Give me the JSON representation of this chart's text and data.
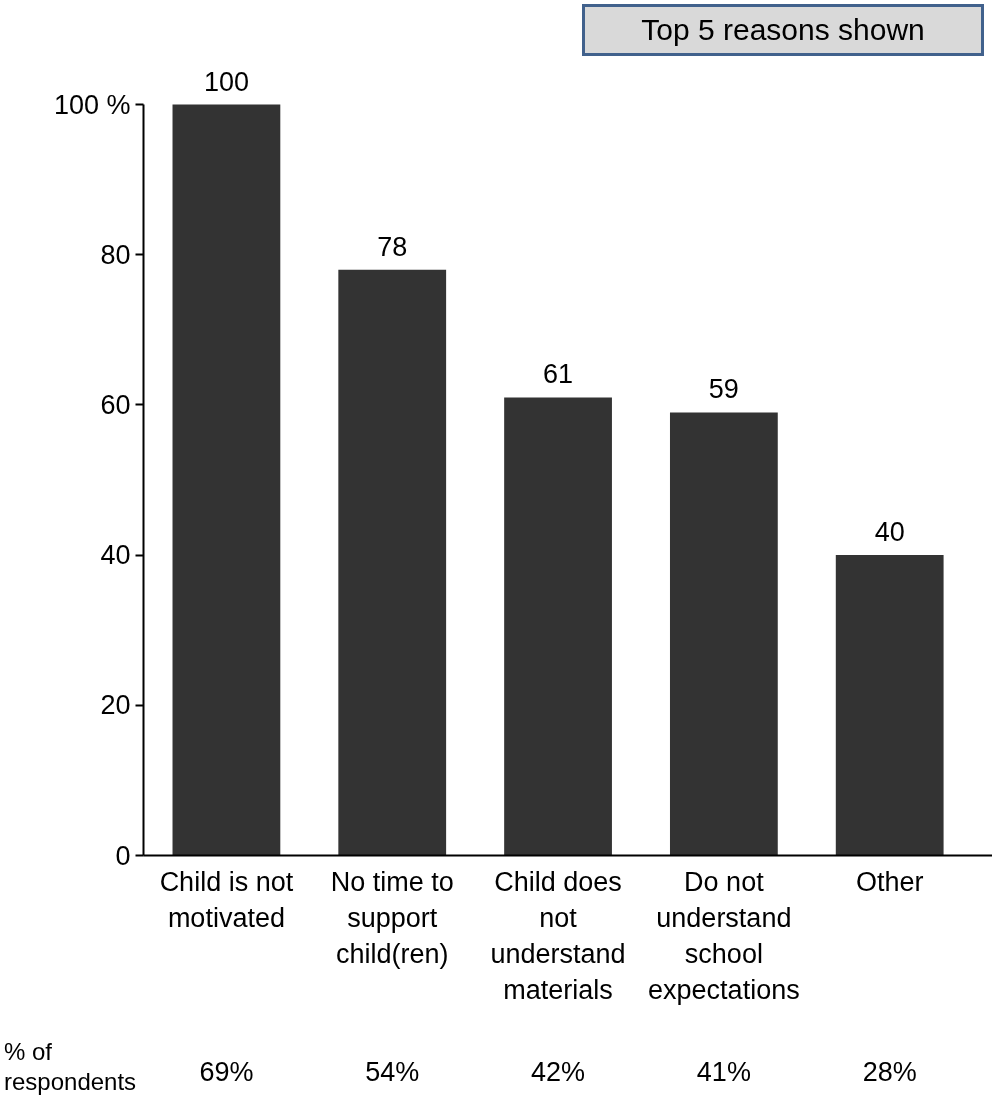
{
  "chart_data": {
    "type": "bar",
    "categories": [
      "Child is not\nmotivated",
      "No time to\nsupport\nchild(ren)",
      "Child does\nnot\nunderstand\nmaterials",
      "Do not\nunderstand\nschool\nexpectations",
      "Other"
    ],
    "values": [
      100,
      78,
      61,
      59,
      40
    ],
    "color": "#333333",
    "data_labels": true,
    "ylim": [
      0,
      100
    ],
    "yticks": [
      0,
      20,
      40,
      60,
      80,
      {
        "value": 100,
        "label": "100 %"
      }
    ],
    "grid": false,
    "annotations": [
      "Top 5 reasons shown",
      "% of\nrespondents",
      "69%",
      "54%",
      "42%",
      "41%",
      "28%"
    ]
  }
}
